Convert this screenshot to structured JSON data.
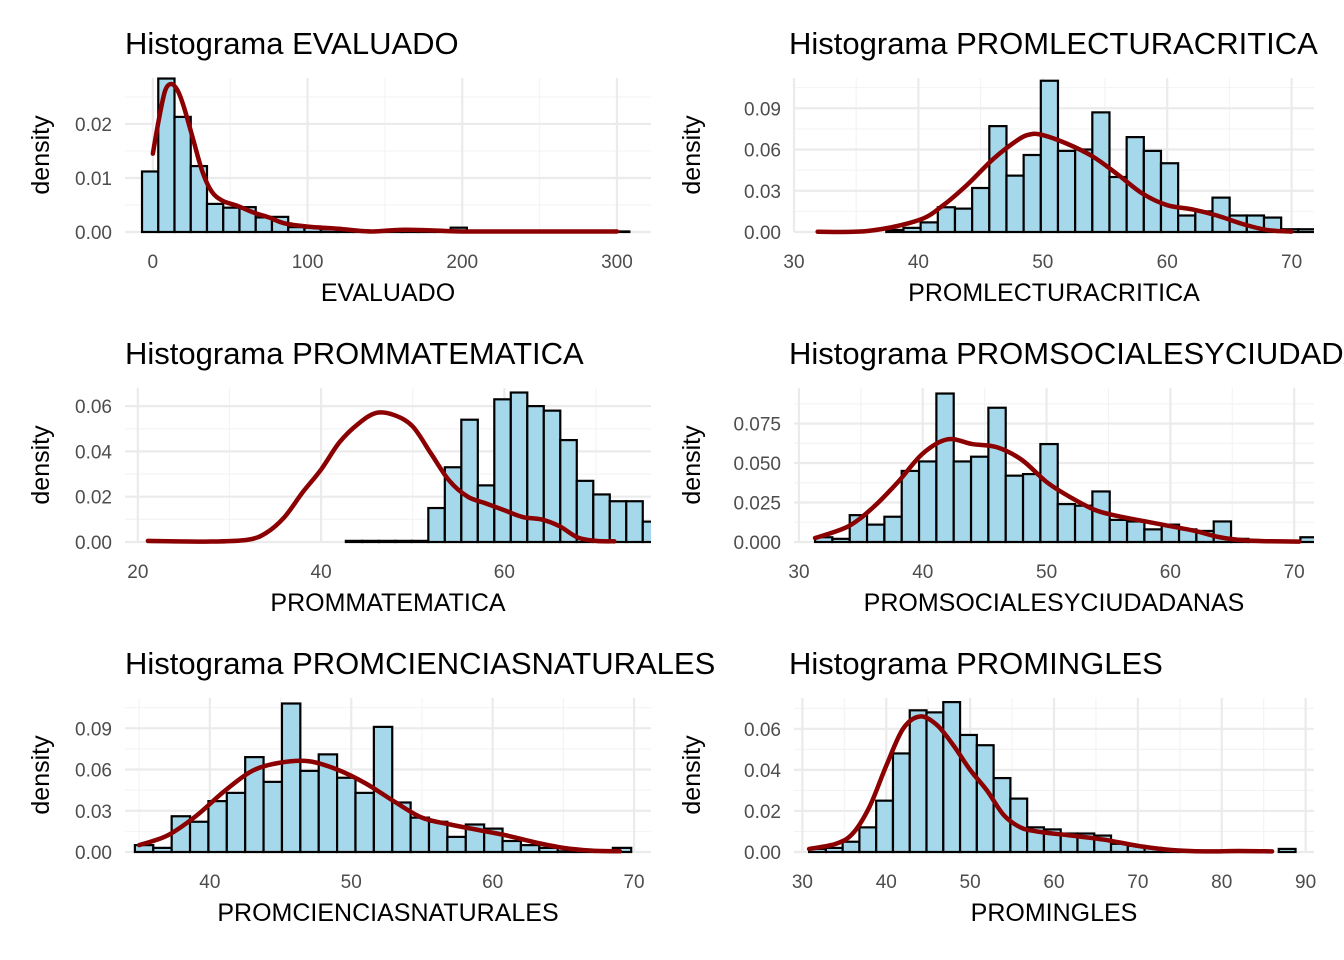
{
  "colors": {
    "bar_fill": "#a6d8ec",
    "bar_outline": "#000000",
    "density": "#8b0000",
    "grid": "#ebebeb"
  },
  "chart_data": [
    {
      "type": "bar",
      "title": "Histograma EVALUADO",
      "xlabel": "EVALUADO",
      "ylabel": "density",
      "xlim": [
        -18,
        322
      ],
      "ylim": [
        0,
        0.0285
      ],
      "xticks": [
        0,
        100,
        200,
        300
      ],
      "yticks": [
        0.0,
        0.01,
        0.02
      ],
      "ytick_labels": [
        "0.00",
        "0.01",
        "0.02"
      ],
      "grid": true,
      "bins": {
        "x0": -7.0,
        "width": 10.5,
        "values": [
          0.0112,
          0.0284,
          0.0213,
          0.0122,
          0.0052,
          0.0045,
          0.0046,
          0.0027,
          0.0028,
          0.0009,
          0.0008,
          0.0005,
          0.0002,
          0.0003,
          0.0002,
          0.0002,
          0.0002,
          0.0001,
          0.0001,
          0.0008,
          0.0001,
          0.0001,
          0.0001,
          0.0001,
          0.0001,
          0.0001,
          0.0,
          0.0001,
          0.0001,
          0.0001
        ]
      },
      "density": [
        [
          0,
          0.0145
        ],
        [
          4,
          0.021
        ],
        [
          8,
          0.0262
        ],
        [
          12,
          0.0274
        ],
        [
          16,
          0.0262
        ],
        [
          20,
          0.0232
        ],
        [
          26,
          0.0172
        ],
        [
          32,
          0.0112
        ],
        [
          38,
          0.0075
        ],
        [
          45,
          0.0058
        ],
        [
          55,
          0.0048
        ],
        [
          65,
          0.0036
        ],
        [
          75,
          0.0027
        ],
        [
          85,
          0.0016
        ],
        [
          100,
          0.001
        ],
        [
          120,
          0.0006
        ],
        [
          140,
          0.0001
        ],
        [
          160,
          0.0004
        ],
        [
          180,
          0.0003
        ],
        [
          200,
          0.0001
        ],
        [
          250,
          0.0001
        ],
        [
          300,
          0.0001
        ]
      ]
    },
    {
      "type": "bar",
      "title": "Histograma PROMLECTURACRITICA",
      "xlabel": "PROMLECTURACRITICA",
      "ylabel": "density",
      "xlim": [
        30,
        71.8
      ],
      "ylim": [
        0,
        0.112
      ],
      "xticks": [
        30,
        40,
        50,
        60,
        70
      ],
      "yticks": [
        0.0,
        0.03,
        0.06,
        0.09
      ],
      "ytick_labels": [
        "0.00",
        "0.03",
        "0.06",
        "0.09"
      ],
      "grid": true,
      "bins": {
        "x0": 31.9,
        "width": 1.38,
        "values": [
          0.0005,
          0.0,
          0.0,
          0.0,
          0.0015,
          0.003,
          0.007,
          0.018,
          0.017,
          0.032,
          0.077,
          0.041,
          0.056,
          0.11,
          0.059,
          0.06,
          0.087,
          0.04,
          0.069,
          0.059,
          0.05,
          0.012,
          0.015,
          0.025,
          0.012,
          0.012,
          0.0105,
          0.002,
          0.002,
          0.001
        ]
      },
      "density": [
        [
          31.9,
          0.0002
        ],
        [
          36,
          0.0008
        ],
        [
          40,
          0.0085
        ],
        [
          42,
          0.0195
        ],
        [
          44,
          0.035
        ],
        [
          46,
          0.053
        ],
        [
          48,
          0.067
        ],
        [
          49,
          0.071
        ],
        [
          50,
          0.0705
        ],
        [
          52,
          0.064
        ],
        [
          54,
          0.055
        ],
        [
          56,
          0.042
        ],
        [
          58,
          0.028
        ],
        [
          60,
          0.0195
        ],
        [
          62,
          0.0165
        ],
        [
          64,
          0.012
        ],
        [
          66,
          0.006
        ],
        [
          68,
          0.0015
        ],
        [
          70,
          0.0003
        ]
      ]
    },
    {
      "type": "bar",
      "title": "Histograma PROMMATEMATICA",
      "xlabel": "PROMMATEMATICA",
      "ylabel": "density",
      "xlim": [
        18.6,
        76
      ],
      "ylim": [
        0,
        0.068
      ],
      "xticks": [
        20,
        40,
        60
      ],
      "yticks": [
        0.0,
        0.02,
        0.04,
        0.06
      ],
      "ytick_labels": [
        "0.00",
        "0.02",
        "0.04",
        "0.06"
      ],
      "grid": true,
      "bins": {
        "x0": 21.1,
        "width": 1.8,
        "values": [
          0.0005,
          0.0,
          0.0,
          0.0,
          0.0,
          0.0,
          0.0,
          0.0,
          0.0,
          0.0,
          0.0,
          0.0,
          0.0005,
          0.0005,
          0.0005,
          0.0005,
          0.0005,
          0.015,
          0.033,
          0.054,
          0.025,
          0.063,
          0.066,
          0.06,
          0.058,
          0.045,
          0.027,
          0.021,
          0.018,
          0.018,
          0.009,
          0.009,
          0.011,
          0.002,
          0.0005,
          0.0,
          0.0005,
          0.0025
        ]
      },
      "density": [
        [
          21.1,
          0.0005
        ],
        [
          28,
          0.0002
        ],
        [
          32,
          0.001
        ],
        [
          34,
          0.004
        ],
        [
          36,
          0.011
        ],
        [
          38,
          0.022
        ],
        [
          40,
          0.032
        ],
        [
          42,
          0.044
        ],
        [
          44,
          0.052
        ],
        [
          46,
          0.057
        ],
        [
          48,
          0.056
        ],
        [
          50,
          0.051
        ],
        [
          52,
          0.039
        ],
        [
          54,
          0.027
        ],
        [
          56,
          0.02
        ],
        [
          58,
          0.017
        ],
        [
          60,
          0.014
        ],
        [
          62,
          0.011
        ],
        [
          64,
          0.01
        ],
        [
          66,
          0.007
        ],
        [
          68,
          0.002
        ],
        [
          70,
          0.0005
        ],
        [
          72,
          0.0003
        ]
      ]
    },
    {
      "type": "bar",
      "title": "Histograma PROMSOCIALESYCIUDADANAS",
      "xlabel": "PROMSOCIALESYCIUDADANAS",
      "ylabel": "density",
      "xlim": [
        29.6,
        71.6
      ],
      "ylim": [
        0,
        0.0975
      ],
      "xticks": [
        30,
        40,
        50,
        60,
        70
      ],
      "yticks": [
        0.0,
        0.025,
        0.05,
        0.075
      ],
      "ytick_labels": [
        "0.000",
        "0.025",
        "0.050",
        "0.075"
      ],
      "grid": true,
      "bins": {
        "x0": 31.3,
        "width": 1.4,
        "values": [
          0.003,
          0.002,
          0.017,
          0.011,
          0.016,
          0.045,
          0.051,
          0.094,
          0.051,
          0.054,
          0.085,
          0.042,
          0.043,
          0.062,
          0.024,
          0.023,
          0.032,
          0.014,
          0.013,
          0.008,
          0.011,
          0.008,
          0.007,
          0.013,
          0.002,
          0.0005,
          0.0005,
          0.0005,
          0.003
        ]
      },
      "density": [
        [
          31.3,
          0.0025
        ],
        [
          34,
          0.01
        ],
        [
          36,
          0.022
        ],
        [
          38,
          0.038
        ],
        [
          40,
          0.056
        ],
        [
          42,
          0.065
        ],
        [
          44,
          0.062
        ],
        [
          46,
          0.06
        ],
        [
          48,
          0.052
        ],
        [
          50,
          0.038
        ],
        [
          52,
          0.028
        ],
        [
          54,
          0.02
        ],
        [
          56,
          0.016
        ],
        [
          58,
          0.013
        ],
        [
          60,
          0.01
        ],
        [
          62,
          0.007
        ],
        [
          64,
          0.003
        ],
        [
          66,
          0.001
        ],
        [
          68,
          0.0005
        ],
        [
          70.4,
          0.0002
        ]
      ]
    },
    {
      "type": "bar",
      "title": "Histograma PROMCIENCIASNATURALES",
      "xlabel": "PROMCIENCIASNATURALES",
      "ylabel": "density",
      "xlim": [
        34,
        71.2
      ],
      "ylim": [
        0,
        0.112
      ],
      "xticks": [
        40,
        50,
        60,
        70
      ],
      "yticks": [
        0.0,
        0.03,
        0.06,
        0.09
      ],
      "ytick_labels": [
        "0.00",
        "0.03",
        "0.06",
        "0.09"
      ],
      "grid": true,
      "bins": {
        "x0": 34.7,
        "width": 1.3,
        "values": [
          0.005,
          0.003,
          0.026,
          0.022,
          0.037,
          0.043,
          0.069,
          0.051,
          0.108,
          0.059,
          0.071,
          0.054,
          0.043,
          0.091,
          0.036,
          0.025,
          0.022,
          0.011,
          0.02,
          0.017,
          0.008,
          0.005,
          0.003,
          0.0005,
          0.0005,
          0.0005,
          0.003
        ]
      },
      "density": [
        [
          35,
          0.005
        ],
        [
          37,
          0.012
        ],
        [
          39,
          0.026
        ],
        [
          41,
          0.044
        ],
        [
          43,
          0.059
        ],
        [
          45,
          0.065
        ],
        [
          47,
          0.066
        ],
        [
          49,
          0.06
        ],
        [
          51,
          0.05
        ],
        [
          53,
          0.037
        ],
        [
          55,
          0.025
        ],
        [
          57,
          0.02
        ],
        [
          59,
          0.016
        ],
        [
          61,
          0.012
        ],
        [
          63,
          0.007
        ],
        [
          65,
          0.003
        ],
        [
          67,
          0.001
        ],
        [
          69,
          0.0005
        ]
      ]
    },
    {
      "type": "bar",
      "title": "Histograma PROMINGLES",
      "xlabel": "PROMINGLES",
      "ylabel": "density",
      "xlim": [
        29,
        91
      ],
      "ylim": [
        0,
        0.075
      ],
      "xticks": [
        30,
        40,
        50,
        60,
        70,
        80,
        90
      ],
      "yticks": [
        0.0,
        0.02,
        0.04,
        0.06
      ],
      "ytick_labels": [
        "0.00",
        "0.02",
        "0.04",
        "0.06"
      ],
      "grid": true,
      "bins": {
        "x0": 30.8,
        "width": 2.0,
        "values": [
          0.0015,
          0.002,
          0.005,
          0.012,
          0.025,
          0.048,
          0.069,
          0.068,
          0.073,
          0.057,
          0.052,
          0.036,
          0.026,
          0.012,
          0.011,
          0.009,
          0.009,
          0.008,
          0.004,
          0.003,
          0.002,
          0.001,
          0.0005,
          0.0005,
          0.0005,
          0.0005,
          0.0005,
          0.0,
          0.0015
        ]
      },
      "density": [
        [
          30.8,
          0.0015
        ],
        [
          34,
          0.004
        ],
        [
          36,
          0.009
        ],
        [
          38,
          0.022
        ],
        [
          40,
          0.042
        ],
        [
          42,
          0.06
        ],
        [
          44,
          0.066
        ],
        [
          46,
          0.062
        ],
        [
          48,
          0.052
        ],
        [
          50,
          0.04
        ],
        [
          52,
          0.03
        ],
        [
          54,
          0.018
        ],
        [
          56,
          0.012
        ],
        [
          58,
          0.01
        ],
        [
          62,
          0.008
        ],
        [
          66,
          0.006
        ],
        [
          70,
          0.003
        ],
        [
          74,
          0.001
        ],
        [
          78,
          0.0003
        ],
        [
          82,
          0.0005
        ],
        [
          86,
          0.0003
        ]
      ]
    }
  ]
}
